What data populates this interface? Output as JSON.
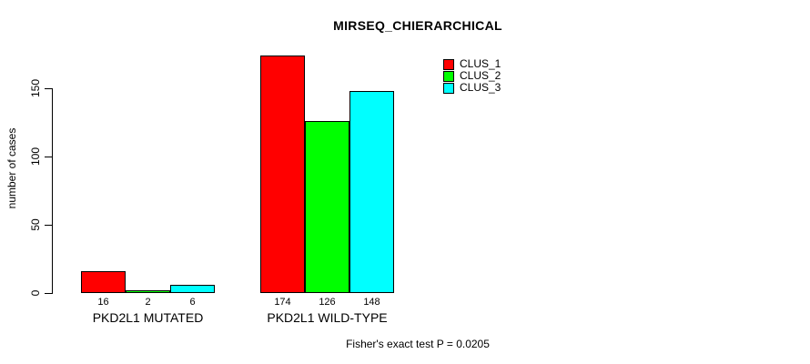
{
  "chart_data": {
    "type": "bar",
    "title": "MIRSEQ_CHIERARCHICAL",
    "ylabel": "number of cases",
    "xlabel": "",
    "categories": [
      "PKD2L1 MUTATED",
      "PKD2L1 WILD-TYPE"
    ],
    "series": [
      {
        "name": "CLUS_1",
        "color": "#ff0000",
        "values": [
          16,
          174
        ]
      },
      {
        "name": "CLUS_2",
        "color": "#00ff00",
        "values": [
          2,
          126
        ]
      },
      {
        "name": "CLUS_3",
        "color": "#00ffff",
        "values": [
          6,
          148
        ]
      }
    ],
    "yticks": [
      0,
      50,
      100,
      150
    ],
    "ylim": [
      0,
      175
    ],
    "grid": false,
    "bar_value_labels_shown": true,
    "legend_position": "top-right",
    "annotation": "Fisher's exact test P = 0.0205",
    "axis_color": "#000000",
    "background_color": "#ffffff"
  }
}
